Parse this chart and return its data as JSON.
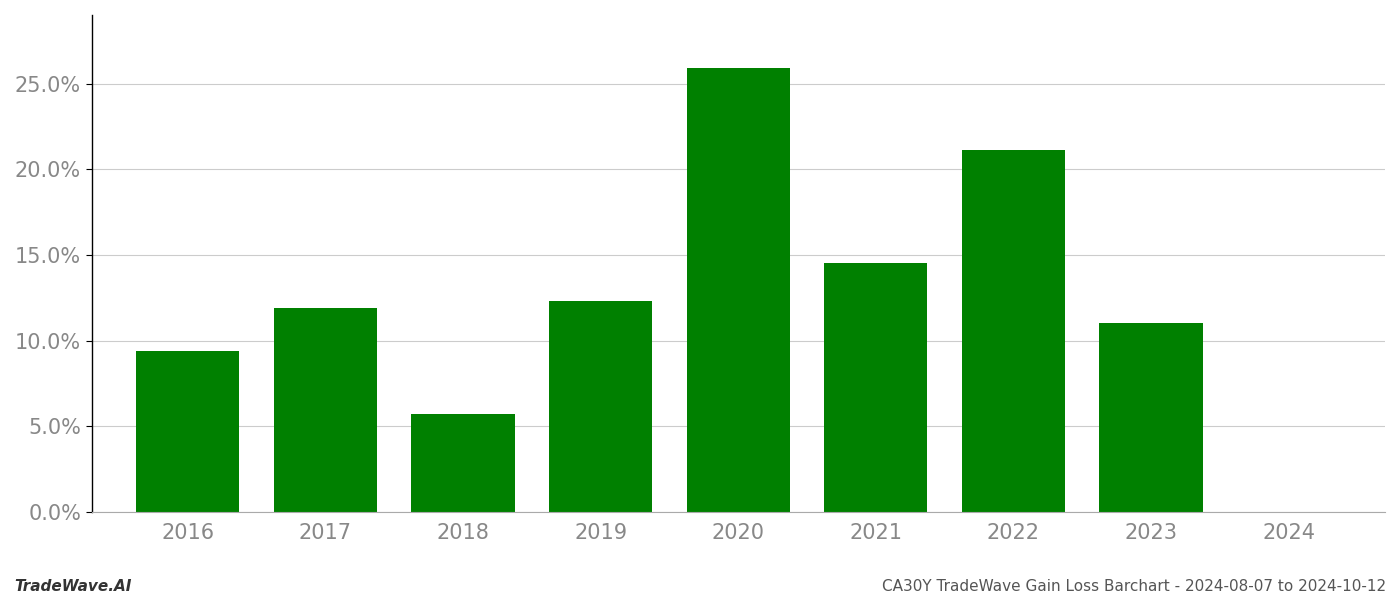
{
  "years": [
    2016,
    2017,
    2018,
    2019,
    2020,
    2021,
    2022,
    2023,
    2024
  ],
  "values": [
    0.094,
    0.119,
    0.057,
    0.123,
    0.259,
    0.145,
    0.211,
    0.11,
    0.0
  ],
  "bar_color": "#008000",
  "background_color": "#ffffff",
  "grid_color": "#cccccc",
  "title": "CA30Y TradeWave Gain Loss Barchart - 2024-08-07 to 2024-10-12",
  "footer_left": "TradeWave.AI",
  "ylim": [
    0,
    0.29
  ],
  "yticks": [
    0.0,
    0.05,
    0.1,
    0.15,
    0.2,
    0.25
  ],
  "title_fontsize": 11,
  "footer_fontsize": 11,
  "tick_fontsize": 15,
  "bar_width": 0.75,
  "xlim_left": 2015.3,
  "xlim_right": 2024.7
}
